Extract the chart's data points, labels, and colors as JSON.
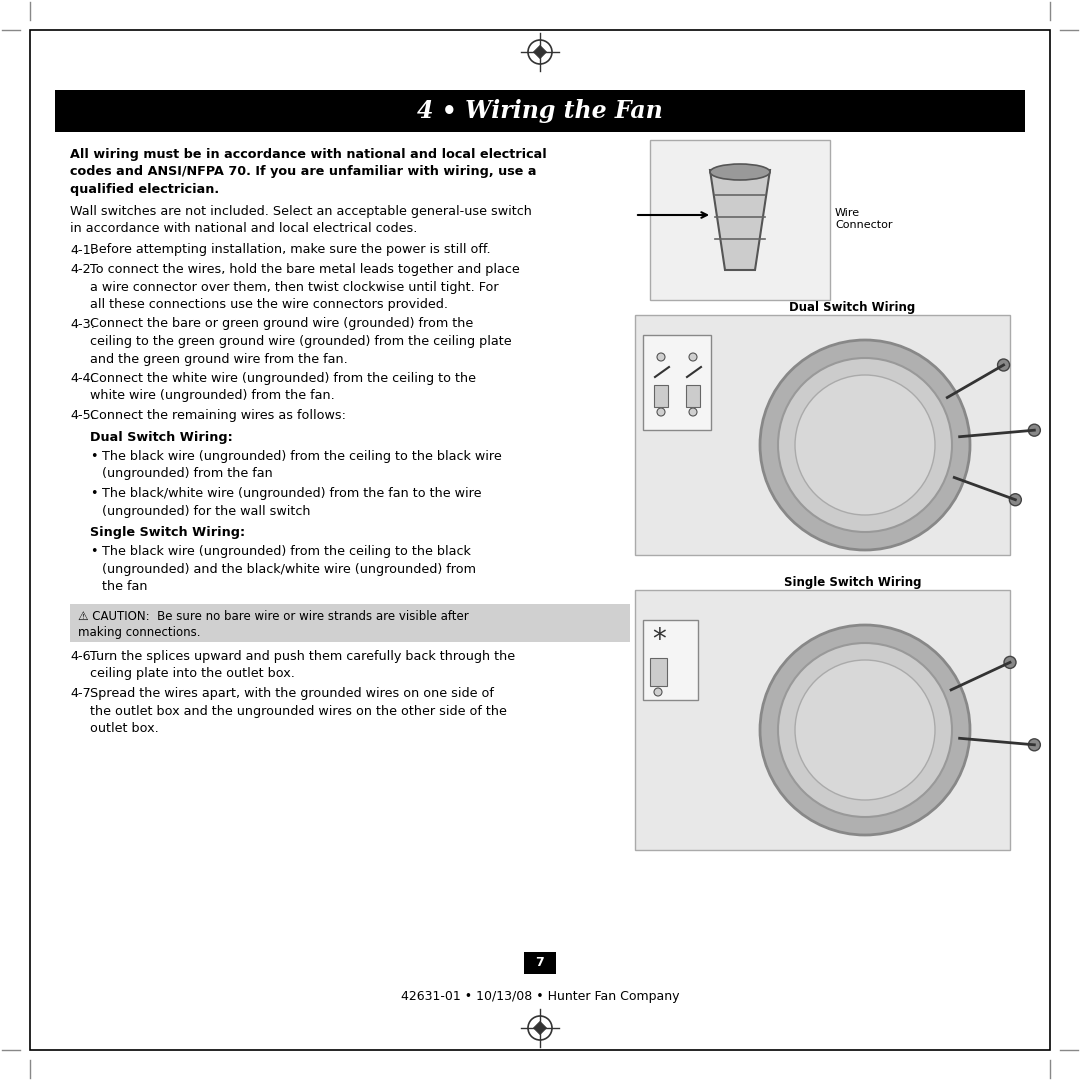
{
  "title": "4 • Wiring the Fan",
  "title_bg": "#000000",
  "title_color": "#ffffff",
  "page_bg": "#ffffff",
  "page_border_color": "#000000",
  "footer_text": "42631-01 • 10/13/08 • Hunter Fan Company",
  "page_number": "7",
  "bold_intro": "All wiring must be in accordance with national and local electrical codes and ANSI/NFPA 70. If you are unfamiliar with wiring, use a qualified electrician.",
  "intro_para": "Wall switches are not included. Select an acceptable general-use switch in accordance with national and local electrical codes.",
  "steps": [
    {
      "num": "4-1.",
      "text": "Before attempting installation, make sure the power is still off."
    },
    {
      "num": "4-2.",
      "text": "To connect the wires, hold the bare metal leads together and place a wire connector over them, then twist clockwise until tight. For all these connections use the wire connectors provided."
    },
    {
      "num": "4-3.",
      "text": "Connect the bare or green ground wire (grounded) from the ceiling to the green ground wire (grounded) from the ceiling plate and the green ground wire from the fan."
    },
    {
      "num": "4-4.",
      "text": "Connect the white wire (ungrounded) from the ceiling to the white wire (ungrounded) from the fan."
    },
    {
      "num": "4-5.",
      "text": "Connect the remaining wires as follows:"
    },
    {
      "num": "4-6.",
      "text": "Turn the splices upward and push them carefully back through the ceiling plate into the outlet box."
    },
    {
      "num": "4-7.",
      "text": "Spread the wires apart, with the grounded wires on one side of the outlet box and the ungrounded wires on the other side of the outlet box."
    }
  ],
  "dual_switch_heading": "Dual Switch Wiring:",
  "dual_bullets": [
    "The black wire (ungrounded) from the ceiling to the black wire (ungrounded) from the fan",
    "The black/white wire (ungrounded) from the fan to the wire (ungrounded) for the wall switch"
  ],
  "single_switch_heading": "Single Switch Wiring:",
  "single_bullets": [
    "The black wire (ungrounded) from the ceiling to the black (ungrounded) and the black/white wire (ungrounded) from the fan"
  ],
  "caution_bg": "#d0d0d0",
  "caution_text": "⚠ CAUTION:  Be sure no bare wire or wire strands are visible after making connections.",
  "wire_connector_label": "Wire\nConnector",
  "dual_switch_label": "Dual Switch Wiring",
  "single_switch_label": "Single Switch Wiring",
  "corner_marks": true
}
